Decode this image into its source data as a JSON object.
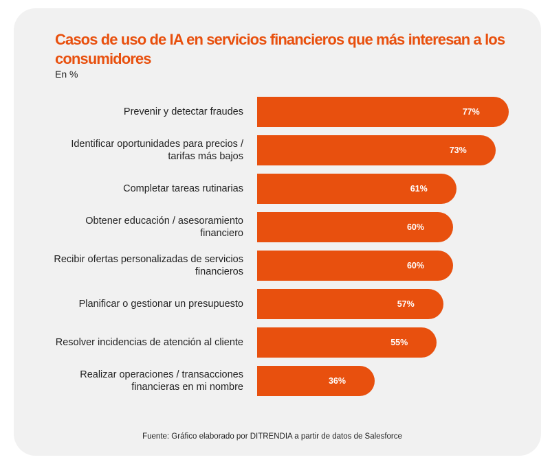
{
  "chart_data": {
    "type": "bar",
    "orientation": "horizontal",
    "title": "Casos de uso de IA en servicios financieros que más interesan a los consumidores",
    "subtitle": "En %",
    "categories": [
      "Prevenir y detectar fraudes",
      "Identificar oportunidades para precios / tarifas más bajos",
      "Completar tareas rutinarias",
      "Obtener educación / asesoramiento financiero",
      "Recibir ofertas personalizadas de servicios financieros",
      "Planificar o gestionar un presupuesto",
      "Resolver incidencias de atención al cliente",
      "Realizar operaciones / transacciones financieras en mi nombre"
    ],
    "values": [
      77,
      73,
      61,
      60,
      60,
      57,
      55,
      36
    ],
    "value_labels": [
      "77%",
      "73%",
      "61%",
      "60%",
      "60%",
      "57%",
      "55%",
      "36%"
    ],
    "xlim": [
      0,
      100
    ],
    "grid": false,
    "bar_color": "#e8500e",
    "title_color": "#e8500e",
    "source": "Fuente: Gráfico elaborado por DITRENDIA a partir de datos de Salesforce"
  }
}
